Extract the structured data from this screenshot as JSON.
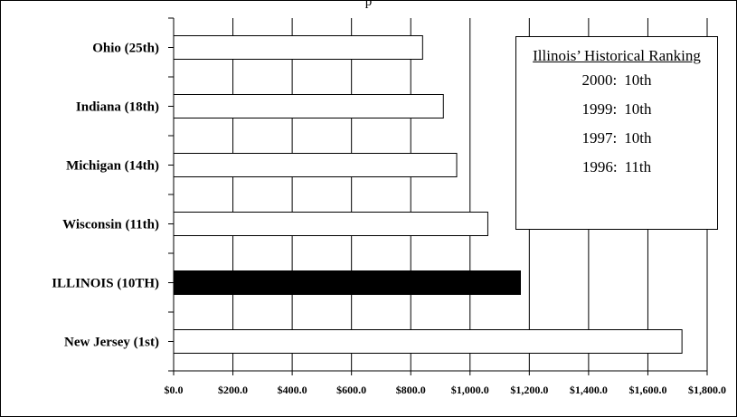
{
  "chart_data": {
    "type": "bar",
    "orientation": "horizontal",
    "title_partial": "p",
    "categories": [
      "Ohio (25th)",
      "Indiana (18th)",
      "Michigan (14th)",
      "Wisconsin (11th)",
      "ILLINOIS (10TH)",
      "New Jersey (1st)"
    ],
    "values": [
      840,
      910,
      955,
      1060,
      1170,
      1715
    ],
    "highlight": "ILLINOIS (10TH)",
    "colors": {
      "default_fill": "#ffffff",
      "highlight_fill": "#000000",
      "stroke": "#000000"
    },
    "xlim": [
      0,
      1800
    ],
    "xticks": [
      "$0.0",
      "$200.0",
      "$400.0",
      "$600.0",
      "$800.0",
      "$1,000.0",
      "$1,200.0",
      "$1,400.0",
      "$1,600.0",
      "$1,800.0"
    ],
    "xtick_values": [
      0,
      200,
      400,
      600,
      800,
      1000,
      1200,
      1400,
      1600,
      1800
    ],
    "grid": "vertical",
    "legend": "none"
  },
  "inset": {
    "title": "Illinois’ Historical Ranking",
    "rows": [
      {
        "year": "2000:",
        "rank": "10th"
      },
      {
        "year": "1999:",
        "rank": "10th"
      },
      {
        "year": "1997:",
        "rank": "10th"
      },
      {
        "year": "1996:",
        "rank": "11th"
      }
    ]
  }
}
